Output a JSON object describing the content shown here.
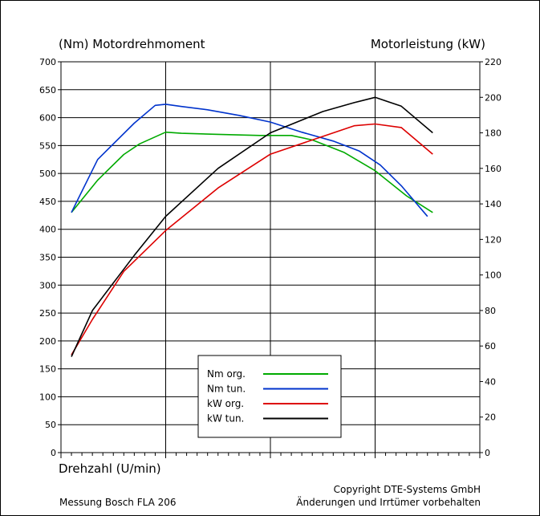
{
  "chart_data": {
    "type": "line",
    "title_left": "(Nm)  Motordrehmoment",
    "title_right": "Motorleistung  (kW)",
    "xlabel": "Drehzahl  (U/min)",
    "footer_left": "Messung Bosch FLA 206",
    "footer_right_1": "Copyright  DTE-Systems GmbH",
    "footer_right_2": "Änderungen und Irrtümer vorbehalten",
    "x_axis": {
      "range": [
        0,
        4
      ],
      "grid": [
        1,
        2,
        3
      ],
      "tick_labels": false
    },
    "y_left": {
      "range": [
        0,
        700
      ],
      "step": 50,
      "ticks": [
        0,
        50,
        100,
        150,
        200,
        250,
        300,
        350,
        400,
        450,
        500,
        550,
        600,
        650,
        700
      ]
    },
    "y_right": {
      "range": [
        0,
        220
      ],
      "step": 20,
      "ticks": [
        0,
        20,
        40,
        60,
        80,
        100,
        120,
        140,
        160,
        180,
        200,
        220
      ]
    },
    "grid": true,
    "legend_position": "bottom-center",
    "series": [
      {
        "name": "Nm org.",
        "axis": "left",
        "color": "#00aa00",
        "x": [
          0.1,
          0.35,
          0.6,
          0.75,
          1.0,
          1.15,
          1.5,
          1.9,
          2.2,
          2.4,
          2.7,
          3.0,
          3.3,
          3.55
        ],
        "y": [
          430,
          488,
          534,
          553,
          574,
          572,
          570,
          568,
          568,
          560,
          538,
          505,
          460,
          430
        ]
      },
      {
        "name": "Nm tun.",
        "axis": "left",
        "color": "#0033cc",
        "x": [
          0.1,
          0.35,
          0.7,
          0.9,
          1.0,
          1.15,
          1.4,
          1.7,
          2.0,
          2.3,
          2.6,
          2.85,
          3.05,
          3.25,
          3.5
        ],
        "y": [
          430,
          525,
          590,
          622,
          624,
          620,
          614,
          604,
          592,
          574,
          558,
          540,
          515,
          478,
          423
        ]
      },
      {
        "name": "kW org.",
        "axis": "right",
        "color": "#dd0000",
        "x": [
          0.1,
          0.3,
          0.6,
          1.0,
          1.5,
          2.0,
          2.5,
          2.8,
          3.0,
          3.25,
          3.55
        ],
        "y": [
          55,
          75,
          102,
          125,
          149,
          168,
          178,
          184,
          185,
          183,
          168
        ]
      },
      {
        "name": "kW tun.",
        "axis": "right",
        "color": "#000000",
        "x": [
          0.1,
          0.3,
          0.7,
          1.0,
          1.5,
          2.0,
          2.5,
          2.8,
          3.0,
          3.25,
          3.55
        ],
        "y": [
          54,
          80,
          111,
          133,
          160,
          180,
          192,
          197,
          200,
          195,
          180
        ]
      }
    ]
  }
}
